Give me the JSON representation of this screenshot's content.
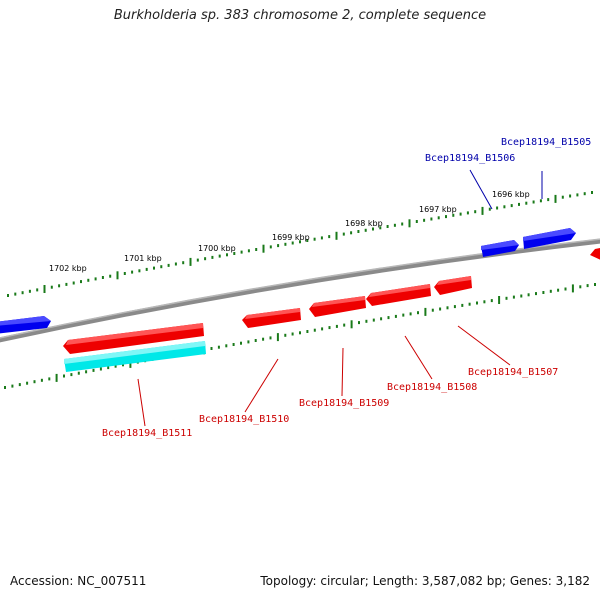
{
  "title": "Burkholderia sp. 383 chromosome 2, complete sequence",
  "footer": {
    "accession": "Accession: NC_007511",
    "summary": "Topology: circular; Length: 3,587,082 bp; Genes: 3,182"
  },
  "colors": {
    "backbone": "#808080",
    "tick": "#1a7a1a",
    "forward_gene": "#0000ee",
    "reverse_gene": "#ee0000",
    "rna_gene": "#00eeee",
    "forward_label": "#0000aa",
    "reverse_label": "#cc0000",
    "kbp_label": "#000000"
  },
  "kbp_labels": [
    "1702 kbp",
    "1701 kbp",
    "1700 kbp",
    "1699 kbp",
    "1698 kbp",
    "1697 kbp",
    "1696 kbp"
  ],
  "genes": [
    {
      "label": "Bcep18194_B1505",
      "strand": "forward"
    },
    {
      "label": "Bcep18194_B1506",
      "strand": "forward"
    },
    {
      "label": "Bcep18194_B1507",
      "strand": "reverse"
    },
    {
      "label": "Bcep18194_B1508",
      "strand": "reverse"
    },
    {
      "label": "Bcep18194_B1509",
      "strand": "reverse"
    },
    {
      "label": "Bcep18194_B1510",
      "strand": "reverse"
    },
    {
      "label": "Bcep18194_B1511",
      "strand": "reverse"
    }
  ]
}
